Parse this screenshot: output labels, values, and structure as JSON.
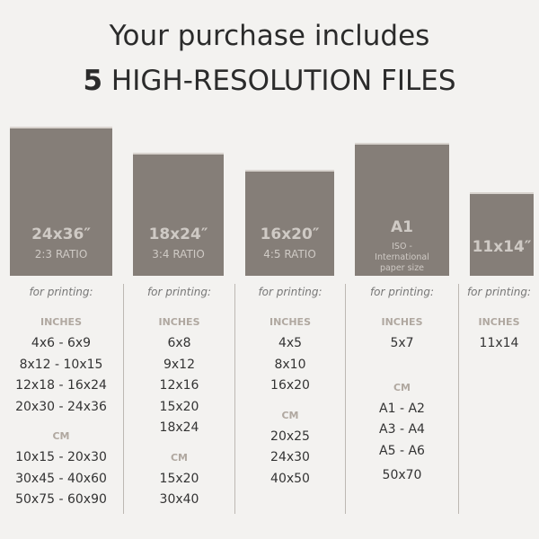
{
  "header": {
    "line1": "Your purchase includes",
    "count": "5",
    "line2": "HIGH-RESOLUTION FILES"
  },
  "colors": {
    "background": "#f3f2f0",
    "rect": "#857e78",
    "heading": "#b0a8a0"
  },
  "columns": [
    {
      "size": "24x36″",
      "sub": "2:3 RATIO",
      "for": "for printing:",
      "inches_label": "INCHES",
      "inches": [
        "4x6 - 6x9",
        "8x12 - 10x15",
        "12x18 - 16x24",
        "20x30 - 24x36"
      ],
      "cm_label": "CM",
      "cm": [
        "10x15 - 20x30",
        "30x45 - 40x60",
        "50x75 - 60x90"
      ]
    },
    {
      "size": "18x24″",
      "sub": "3:4 RATIO",
      "for": "for printing:",
      "inches_label": "INCHES",
      "inches": [
        "6x8",
        "9x12",
        "12x16",
        "15x20",
        "18x24"
      ],
      "cm_label": "CM",
      "cm": [
        "15x20",
        "30x40"
      ]
    },
    {
      "size": "16x20″",
      "sub": "4:5 RATIO",
      "for": "for printing:",
      "inches_label": "INCHES",
      "inches": [
        "4x5",
        "8x10",
        "16x20"
      ],
      "cm_label": "CM",
      "cm": [
        "20x25",
        "24x30",
        "40x50"
      ]
    },
    {
      "size": "A1",
      "sub": "ISO - International paper size",
      "for": "for printing:",
      "inches_label": "INCHES",
      "inches": [
        "5x7"
      ],
      "cm_label": "CM",
      "cm": [
        "A1 - A2",
        "A3 - A4",
        "A5 - A6",
        "50x70"
      ]
    },
    {
      "size": "11x14″",
      "for": "for printing:",
      "inches_label": "INCHES",
      "inches": [
        "11x14"
      ]
    }
  ]
}
